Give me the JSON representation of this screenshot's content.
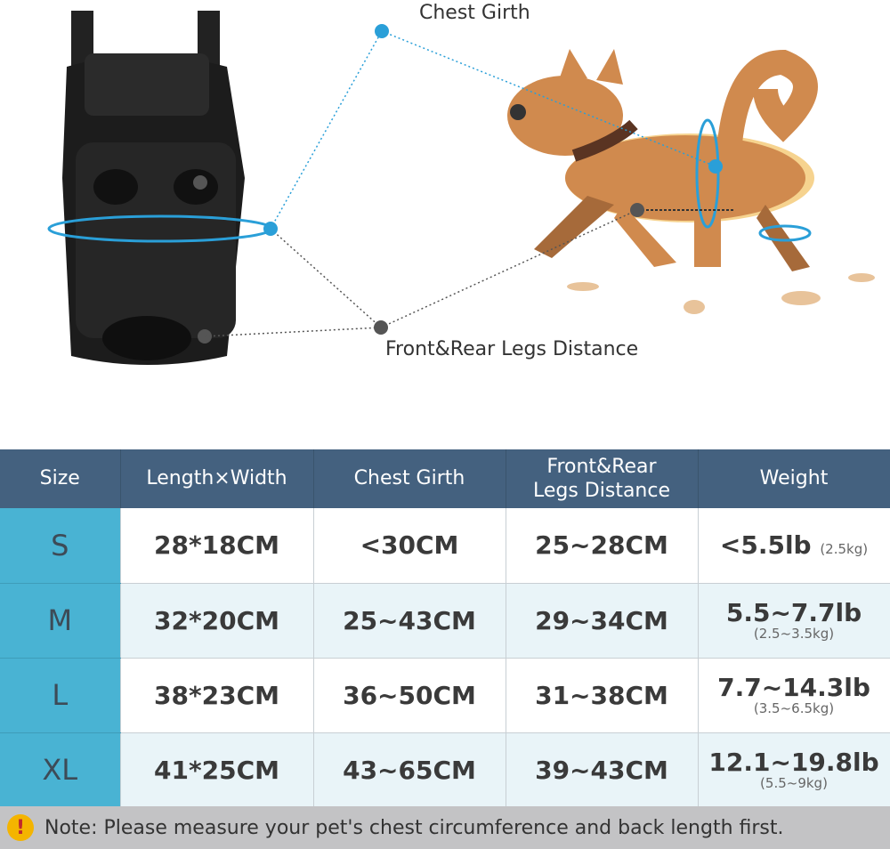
{
  "labels": {
    "chest_girth": "Chest Girth",
    "legs_distance": "Front&Rear Legs Distance"
  },
  "colors": {
    "header": "#44617f",
    "size_column": "#49b3d3",
    "accent_line": "#2a9fd8",
    "alt_row": "#e9f4f8"
  },
  "table": {
    "headers": [
      "Size",
      "Length×Width",
      "Chest Girth",
      "Front&Rear Legs Distance",
      "Weight"
    ],
    "rows": [
      {
        "size": "S",
        "length_width": "28*18CM",
        "chest": "<30CM",
        "legs": "25~28CM",
        "weight": "<5.5lb",
        "weight_kg": "(2.5kg)"
      },
      {
        "size": "M",
        "length_width": "32*20CM",
        "chest": "25~43CM",
        "legs": "29~34CM",
        "weight": "5.5~7.7lb",
        "weight_kg": "(2.5~3.5kg)"
      },
      {
        "size": "L",
        "length_width": "38*23CM",
        "chest": "36~50CM",
        "legs": "31~38CM",
        "weight": "7.7~14.3lb",
        "weight_kg": "(3.5~6.5kg)"
      },
      {
        "size": "XL",
        "length_width": "41*25CM",
        "chest": "43~65CM",
        "legs": "39~43CM",
        "weight": "12.1~19.8lb",
        "weight_kg": "(5.5~9kg)"
      }
    ]
  },
  "note": {
    "icon": "warning-icon",
    "text": "Note: Please measure your pet's chest circumference and back length first."
  }
}
